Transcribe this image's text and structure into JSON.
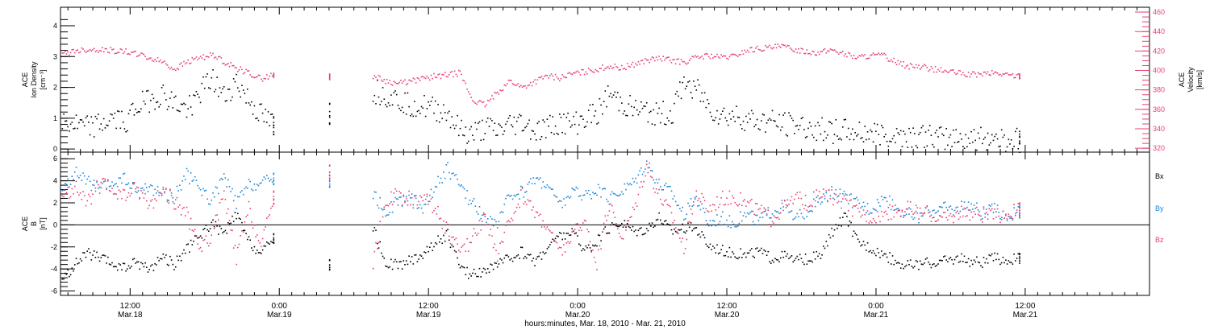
{
  "colors": {
    "black": "#000000",
    "pink": "#e8406f",
    "blue": "#1a86d8"
  },
  "xaxis": {
    "title": "hours:minutes, Mar. 18, 2010 - Mar. 21, 2010",
    "range_hours": [
      6.4,
      94
    ],
    "ticks": [
      {
        "h": 12,
        "time": "12:00",
        "date": "Mar.18"
      },
      {
        "h": 24,
        "time": "0:00",
        "date": "Mar.19"
      },
      {
        "h": 36,
        "time": "12:00",
        "date": "Mar.19"
      },
      {
        "h": 48,
        "time": "0:00",
        "date": "Mar.20"
      },
      {
        "h": 60,
        "time": "12:00",
        "date": "Mar.20"
      },
      {
        "h": 72,
        "time": "0:00",
        "date": "Mar.21"
      },
      {
        "h": 84,
        "time": "12:00",
        "date": "Mar.21"
      }
    ]
  },
  "chart_data": [
    {
      "type": "scatter",
      "panel": "top",
      "ylabel_left": [
        "ACE",
        "Ion Density",
        "[cm⁻³]"
      ],
      "ylabel_right": [
        "ACE",
        "Velocity",
        "[km/s]"
      ],
      "ylim_left": [
        -0.1,
        4.6
      ],
      "yticks_left": [
        0,
        1,
        2,
        3,
        4
      ],
      "ylim_right": [
        316,
        465
      ],
      "yticks_right": [
        320,
        340,
        360,
        380,
        400,
        420,
        440,
        460
      ],
      "series": [
        {
          "axis": "left",
          "color": "black",
          "x": [
            6.5,
            7.5,
            8.5,
            9.5,
            10.5,
            11.5,
            12.5,
            13.5,
            14.5,
            15.5,
            16.5,
            17.5,
            18.5,
            19.5,
            20.5,
            21.5,
            22.5,
            23.5,
            28,
            31.5,
            32.5,
            33.5,
            34.5,
            35.5,
            36.5,
            37.5,
            38.5,
            39.5,
            40.5,
            41.5,
            42.5,
            43.5,
            44.5,
            45.5,
            46.5,
            47.5,
            48.5,
            49.5,
            50.5,
            51.5,
            52.5,
            53.5,
            54.5,
            55.5,
            56.5,
            57.5,
            58.5,
            59.5,
            60.5,
            61.5,
            62.5,
            63.5,
            64.5,
            65.5,
            66.5,
            67.5,
            68.5,
            69.5,
            70.5,
            71.5,
            72.5,
            73.5,
            74.5,
            75.5,
            76.5,
            77.5,
            78.5,
            79.5,
            80.5,
            81.5,
            82.5,
            83.5
          ],
          "y": [
            0.9,
            0.8,
            0.7,
            0.8,
            1.0,
            0.9,
            1.4,
            1.6,
            1.8,
            1.5,
            1.3,
            1.8,
            2.3,
            1.7,
            2.2,
            1.6,
            1.1,
            0.8,
            1.2,
            1.9,
            1.8,
            1.6,
            1.5,
            1.4,
            1.3,
            1.2,
            0.6,
            0.5,
            0.7,
            0.6,
            0.8,
            0.9,
            0.6,
            0.7,
            0.9,
            0.8,
            1.0,
            1.2,
            1.8,
            1.5,
            1.3,
            1.2,
            1.2,
            1.1,
            2.2,
            2.0,
            1.4,
            1.1,
            1.1,
            1.0,
            0.9,
            0.9,
            0.8,
            0.8,
            0.7,
            0.7,
            0.6,
            0.6,
            0.55,
            0.55,
            0.5,
            0.5,
            0.45,
            0.45,
            0.4,
            0.4,
            0.4,
            0.35,
            0.35,
            0.4,
            0.3,
            0.3
          ]
        },
        {
          "axis": "right",
          "color": "pink",
          "x": [
            6.5,
            7.5,
            8.5,
            9.5,
            10.5,
            11.5,
            12.5,
            13.5,
            14.5,
            15.5,
            16.5,
            17.5,
            18.5,
            19.5,
            20.5,
            21.5,
            22.5,
            23.5,
            28,
            31.5,
            32.5,
            33.5,
            34.5,
            35.5,
            36.5,
            37.5,
            38.5,
            39.5,
            40.5,
            41.5,
            42.5,
            43.5,
            44.5,
            45.5,
            46.5,
            47.5,
            48.5,
            49.5,
            50.5,
            51.5,
            52.5,
            53.5,
            54.5,
            55.5,
            56.5,
            57.5,
            58.5,
            59.5,
            60.5,
            61.5,
            62.5,
            63.5,
            64.5,
            65.5,
            66.5,
            67.5,
            68.5,
            69.5,
            70.5,
            71.5,
            72.5,
            73.5,
            74.5,
            75.5,
            76.5,
            77.5,
            78.5,
            79.5,
            80.5,
            81.5,
            82.5,
            83.5
          ],
          "y": [
            417,
            421,
            422,
            422,
            421,
            420,
            418,
            413,
            410,
            402,
            409,
            414,
            416,
            410,
            403,
            398,
            392,
            396,
            394,
            395,
            390,
            387,
            389,
            392,
            395,
            396,
            398,
            370,
            365,
            378,
            390,
            383,
            389,
            395,
            393,
            397,
            399,
            402,
            405,
            403,
            407,
            411,
            413,
            411,
            409,
            414,
            416,
            414,
            415,
            421,
            423,
            424,
            425,
            422,
            420,
            419,
            422,
            417,
            414,
            416,
            416,
            410,
            405,
            405,
            402,
            400,
            398,
            396,
            397,
            398,
            396,
            395
          ]
        }
      ]
    },
    {
      "type": "scatter",
      "panel": "bottom",
      "ylabel": [
        "ACE",
        "B",
        "[nT]"
      ],
      "ylim": [
        -6.4,
        6.6
      ],
      "yticks": [
        -6,
        -4,
        -2,
        0,
        2,
        4,
        6
      ],
      "legend": [
        "Bx",
        "By",
        "Bz"
      ],
      "series": [
        {
          "name": "Bx",
          "color": "black",
          "x": [
            6.5,
            7.5,
            8.5,
            9.5,
            10.5,
            11.5,
            12.5,
            13.5,
            14.5,
            15.5,
            16.5,
            17.5,
            18.5,
            19.5,
            20.5,
            21.5,
            22.5,
            23.5,
            28,
            31.5,
            32.5,
            33.5,
            34.5,
            35.5,
            36.5,
            37.5,
            38.5,
            39.5,
            40.5,
            41.5,
            42.5,
            43.5,
            44.5,
            45.5,
            46.5,
            47.5,
            48.5,
            49.5,
            50.5,
            51.5,
            52.5,
            53.5,
            54.5,
            55.5,
            56.5,
            57.5,
            58.5,
            59.5,
            60.5,
            61.5,
            62.5,
            63.5,
            64.5,
            65.5,
            66.5,
            67.5,
            68.5,
            69.5,
            70.5,
            71.5,
            72.5,
            73.5,
            74.5,
            75.5,
            76.5,
            77.5,
            78.5,
            79.5,
            80.5,
            81.5,
            82.5,
            83.5
          ],
          "y": [
            -5.0,
            -3.6,
            -2.5,
            -3.0,
            -3.5,
            -3.9,
            -3.3,
            -4.0,
            -2.8,
            -3.5,
            -2.2,
            -1.0,
            0.2,
            -0.8,
            1.0,
            -1.5,
            -2.6,
            -1.2,
            -3.6,
            -0.2,
            -3.4,
            -3.6,
            -3.2,
            -2.6,
            -1.6,
            -0.8,
            -3.9,
            -4.5,
            -4.0,
            -3.6,
            -3.0,
            -2.4,
            -3.3,
            -2.0,
            -1.0,
            -0.6,
            -2.2,
            -1.5,
            -0.2,
            0.3,
            -0.5,
            -0.3,
            0.8,
            -0.5,
            -0.2,
            -0.3,
            -1.8,
            -2.2,
            -2.5,
            -2.7,
            -2.3,
            -3.0,
            -2.8,
            -3.2,
            -3.0,
            -2.8,
            -0.5,
            0.8,
            -1.5,
            -2.0,
            -2.6,
            -3.2,
            -3.6,
            -3.5,
            -3.4,
            -3.2,
            -3.0,
            -3.2,
            -3.3,
            -3.0,
            -3.2,
            -3.0
          ]
        },
        {
          "name": "By",
          "color": "blue",
          "x": [
            6.5,
            7.5,
            8.5,
            9.5,
            10.5,
            11.5,
            12.5,
            13.5,
            14.5,
            15.5,
            16.5,
            17.5,
            18.5,
            19.5,
            20.5,
            21.5,
            22.5,
            23.5,
            28,
            31.5,
            32.5,
            33.5,
            34.5,
            35.5,
            36.5,
            37.5,
            38.5,
            39.5,
            40.5,
            41.5,
            42.5,
            43.5,
            44.5,
            45.5,
            46.5,
            47.5,
            48.5,
            49.5,
            50.5,
            51.5,
            52.5,
            53.5,
            54.5,
            55.5,
            56.5,
            57.5,
            58.5,
            59.5,
            60.5,
            61.5,
            62.5,
            63.5,
            64.5,
            65.5,
            66.5,
            67.5,
            68.5,
            69.5,
            70.5,
            71.5,
            72.5,
            73.5,
            74.5,
            75.5,
            76.5,
            77.5,
            78.5,
            79.5,
            80.5,
            81.5,
            82.5,
            83.5
          ],
          "y": [
            3.0,
            4.8,
            4.0,
            3.2,
            3.8,
            4.2,
            3.0,
            3.5,
            3.0,
            2.6,
            4.6,
            3.5,
            2.2,
            4.4,
            2.0,
            3.6,
            3.8,
            4.2,
            4.0,
            2.8,
            1.2,
            2.2,
            2.6,
            1.6,
            3.5,
            5.2,
            3.5,
            2.0,
            0.8,
            0.0,
            2.8,
            3.0,
            4.2,
            3.8,
            1.8,
            3.0,
            2.8,
            3.2,
            2.5,
            3.2,
            4.0,
            5.8,
            3.8,
            3.0,
            1.0,
            2.5,
            0.2,
            0.8,
            0.2,
            1.0,
            0.5,
            1.2,
            1.8,
            0.5,
            1.5,
            2.2,
            3.0,
            2.5,
            2.0,
            1.5,
            2.5,
            1.8,
            1.0,
            0.8,
            1.5,
            1.6,
            1.4,
            2.0,
            1.2,
            1.4,
            0.8,
            1.2
          ]
        },
        {
          "name": "Bz",
          "color": "pink",
          "x": [
            6.5,
            7.5,
            8.5,
            9.5,
            10.5,
            11.5,
            12.5,
            13.5,
            14.5,
            15.5,
            16.5,
            17.5,
            18.5,
            19.5,
            20.5,
            21.5,
            22.5,
            23.5,
            28,
            31.5,
            32.5,
            33.5,
            34.5,
            35.5,
            36.5,
            37.5,
            38.5,
            39.5,
            40.5,
            41.5,
            42.5,
            43.5,
            44.5,
            45.5,
            46.5,
            47.5,
            48.5,
            49.5,
            50.5,
            51.5,
            52.5,
            53.5,
            54.5,
            55.5,
            56.5,
            57.5,
            58.5,
            59.5,
            60.5,
            61.5,
            62.5,
            63.5,
            64.5,
            65.5,
            66.5,
            67.5,
            68.5,
            69.5,
            70.5,
            71.5,
            72.5,
            73.5,
            74.5,
            75.5,
            76.5,
            77.5,
            78.5,
            79.5,
            80.5,
            81.5,
            82.5,
            83.5
          ],
          "y": [
            2.5,
            3.5,
            2.0,
            3.8,
            3.2,
            2.6,
            3.5,
            1.8,
            3.2,
            2.2,
            1.0,
            -2.0,
            -1.0,
            2.8,
            -3.0,
            1.5,
            -2.0,
            2.5,
            4.8,
            -3.5,
            2.2,
            2.8,
            2.0,
            2.8,
            1.5,
            -0.5,
            -2.5,
            -1.2,
            1.0,
            -3.0,
            0.5,
            2.8,
            1.2,
            0.0,
            -2.5,
            -1.0,
            0.5,
            -3.5,
            2.0,
            -1.0,
            1.5,
            5.5,
            2.8,
            1.0,
            -2.0,
            3.0,
            1.5,
            2.5,
            2.6,
            2.0,
            1.5,
            0.5,
            1.5,
            2.5,
            2.0,
            2.8,
            2.5,
            2.0,
            1.2,
            0.8,
            1.0,
            1.4,
            1.6,
            1.2,
            0.9,
            0.6,
            1.0,
            1.2,
            1.0,
            0.8,
            1.0,
            1.4
          ]
        }
      ]
    }
  ]
}
